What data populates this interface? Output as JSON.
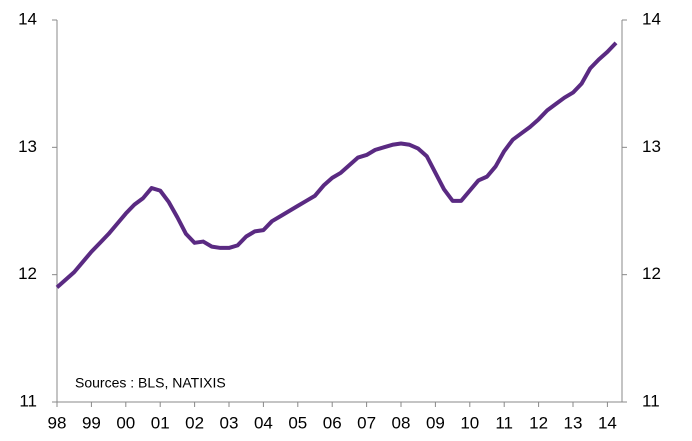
{
  "chart_data": {
    "type": "line",
    "categories": [
      "98",
      null,
      null,
      null,
      "99",
      null,
      null,
      null,
      "00",
      null,
      null,
      null,
      "01",
      null,
      null,
      null,
      "02",
      null,
      null,
      null,
      "03",
      null,
      null,
      null,
      "04",
      null,
      null,
      null,
      "05",
      null,
      null,
      null,
      "06",
      null,
      null,
      null,
      "07",
      null,
      null,
      null,
      "08",
      null,
      null,
      null,
      "09",
      null,
      null,
      null,
      "10",
      null,
      null,
      null,
      "11",
      null,
      null,
      null,
      "12",
      null,
      null,
      null,
      "13",
      null,
      null,
      null,
      "14",
      null
    ],
    "series": [
      {
        "color": "#5a2a82",
        "values": [
          11.9,
          11.96,
          12.02,
          12.1,
          12.18,
          12.25,
          12.32,
          12.4,
          12.48,
          12.55,
          12.6,
          12.68,
          12.66,
          12.57,
          12.45,
          12.32,
          12.25,
          12.26,
          12.22,
          12.21,
          12.21,
          12.23,
          12.3,
          12.34,
          12.35,
          12.42,
          12.46,
          12.5,
          12.54,
          12.58,
          12.62,
          12.7,
          12.76,
          12.8,
          12.86,
          12.92,
          12.94,
          12.98,
          13.0,
          13.02,
          13.03,
          13.02,
          12.99,
          12.93,
          12.8,
          12.67,
          12.58,
          12.58,
          12.66,
          12.74,
          12.77,
          12.85,
          12.97,
          13.06,
          13.11,
          13.16,
          13.22,
          13.29,
          13.34,
          13.39,
          13.43,
          13.5,
          13.62,
          13.69,
          13.75,
          13.82
        ]
      }
    ],
    "ylim": [
      11,
      14
    ],
    "yticks": [
      11,
      12,
      13,
      14
    ],
    "annotation": "Sources : BLS, NATIXIS"
  }
}
